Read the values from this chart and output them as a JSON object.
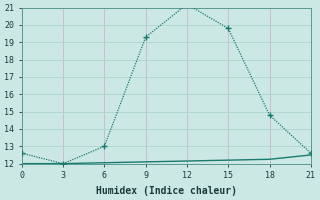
{
  "xlabel": "Humidex (Indice chaleur)",
  "x_data": [
    0,
    3,
    6,
    9,
    12,
    15,
    18,
    21
  ],
  "y_main": [
    12.6,
    12.0,
    13.0,
    19.3,
    21.2,
    19.8,
    14.8,
    12.6
  ],
  "y_flat": [
    12.0,
    12.0,
    12.05,
    12.1,
    12.15,
    12.2,
    12.25,
    12.5
  ],
  "line_color": "#1a7a6e",
  "bg_color": "#cce8e4",
  "grid_color": "#aed4ce",
  "xlim": [
    0,
    21
  ],
  "ylim": [
    12,
    21
  ],
  "xticks": [
    0,
    3,
    6,
    9,
    12,
    15,
    18,
    21
  ],
  "yticks": [
    12,
    13,
    14,
    15,
    16,
    17,
    18,
    19,
    20,
    21
  ],
  "tick_fontsize": 6,
  "xlabel_fontsize": 7
}
